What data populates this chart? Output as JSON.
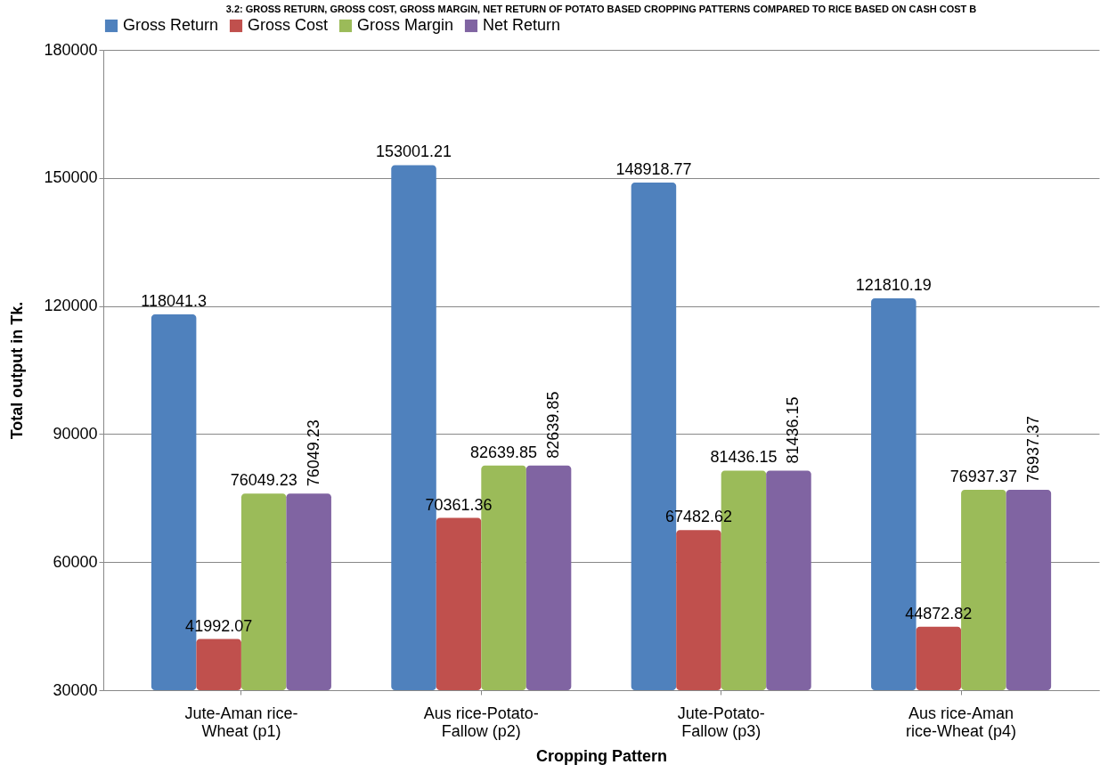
{
  "chart_data": {
    "type": "bar",
    "title": "3.2: GROSS RETURN, GROSS COST, GROSS MARGIN, NET RETURN OF POTATO BASED CROPPING PATTERNS COMPARED TO RICE BASED ON CASH COST B",
    "xlabel": "Cropping Pattern",
    "ylabel": "Total output in Tk.",
    "categories": [
      "Jute-Aman rice-Wheat (p1)",
      "Aus rice-Potato-Fallow (p2)",
      "Jute-Potato-Fallow (p3)",
      "Aus rice-Aman rice-Wheat (p4)"
    ],
    "series": [
      {
        "name": "Gross Return",
        "color": "#4f81bd",
        "values": [
          118041.3,
          153001.21,
          148918.77,
          121810.19
        ]
      },
      {
        "name": "Gross Cost",
        "color": "#c0504d",
        "values": [
          41992.07,
          70361.36,
          67482.62,
          44872.82
        ]
      },
      {
        "name": "Gross Margin",
        "color": "#9bbb59",
        "values": [
          76049.23,
          82639.85,
          81436.15,
          76937.37
        ]
      },
      {
        "name": "Net Return",
        "color": "#8064a2",
        "values": [
          76049.23,
          82639.85,
          81436.15,
          76937.37
        ]
      }
    ],
    "ylim": [
      30000,
      180000
    ],
    "yticks": [
      30000,
      60000,
      90000,
      120000,
      150000,
      180000
    ],
    "grid": "y",
    "legend": "top",
    "data_labels": true
  }
}
